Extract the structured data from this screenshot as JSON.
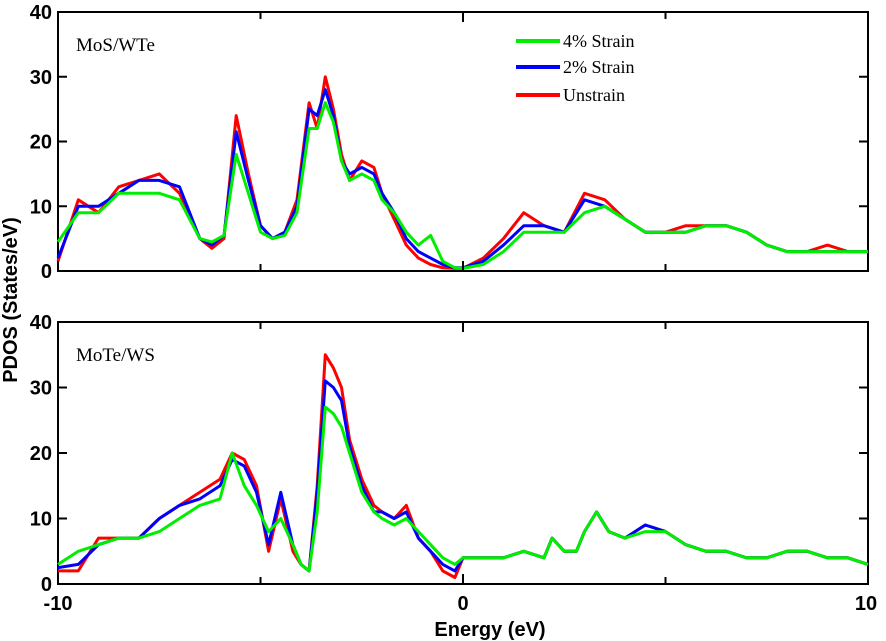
{
  "chart_data": {
    "type": "line",
    "ylabel": "PDOS (States/eV)",
    "xlabel": "Energy (eV)",
    "xlim": [
      -10,
      10
    ],
    "ylim": [
      0,
      40
    ],
    "xticks": [
      "-10",
      "0",
      "10"
    ],
    "xtick_values": [
      -10,
      0,
      10
    ],
    "yticks": [
      "0",
      "10",
      "20",
      "30",
      "40"
    ],
    "ytick_values": [
      0,
      10,
      20,
      30,
      40
    ],
    "legend": [
      {
        "name": "4% Strain",
        "color": "#00ee00"
      },
      {
        "name": "2% Strain",
        "color": "#0000ff"
      },
      {
        "name": "Unstrain",
        "color": "#ff0000"
      }
    ],
    "panels": [
      {
        "title": "MoS/WTe",
        "x": [
          -10,
          -9.5,
          -9,
          -8.5,
          -8,
          -7.5,
          -7,
          -6.5,
          -6.2,
          -5.9,
          -5.6,
          -5.3,
          -5,
          -4.7,
          -4.4,
          -4.1,
          -3.8,
          -3.6,
          -3.4,
          -3.2,
          -3,
          -2.8,
          -2.5,
          -2.2,
          -2,
          -1.7,
          -1.4,
          -1.1,
          -0.8,
          -0.5,
          -0.2,
          0,
          0.5,
          1,
          1.5,
          2,
          2.5,
          3,
          3.5,
          4,
          4.5,
          5,
          5.5,
          6,
          6.5,
          7,
          7.5,
          8,
          8.5,
          9,
          9.5,
          10
        ],
        "series": [
          {
            "name": "Unstrain",
            "color": "#ff0000",
            "values": [
              1.5,
              11,
              9,
              13,
              14,
              15,
              12,
              5,
              3.5,
              5,
              24,
              15,
              7,
              5,
              6,
              11,
              26,
              22,
              30,
              25,
              18,
              14,
              17,
              16,
              12,
              8,
              4,
              2,
              1,
              0.5,
              0.4,
              0.4,
              2,
              5,
              9,
              7,
              6,
              12,
              11,
              8,
              6,
              6,
              7,
              7,
              7,
              6,
              4,
              3,
              3,
              4,
              3,
              3
            ]
          },
          {
            "name": "2% Strain",
            "color": "#0000ff",
            "values": [
              2,
              10,
              10,
              12,
              14,
              14,
              13,
              5,
              4,
              5.5,
              21.5,
              14,
              7,
              5,
              6,
              10,
              25,
              24,
              28,
              24,
              17,
              15,
              16,
              15,
              12,
              9,
              5,
              3,
              2,
              1,
              0.5,
              0.5,
              1.5,
              4,
              7,
              7,
              6,
              11,
              10,
              8,
              6,
              6,
              6,
              7,
              7,
              6,
              4,
              3,
              3,
              3,
              3,
              3
            ]
          },
          {
            "name": "4% Strain",
            "color": "#00ee00",
            "values": [
              4.5,
              9,
              9,
              12,
              12,
              12,
              11,
              5,
              4.5,
              5.5,
              18,
              12,
              6,
              5,
              5.5,
              9,
              22,
              22,
              26,
              23,
              17,
              14,
              15,
              14,
              11,
              9,
              6,
              4,
              5.5,
              1.5,
              0.5,
              0.4,
              1,
              3,
              6,
              6,
              6,
              9,
              10,
              8,
              6,
              6,
              6,
              7,
              7,
              6,
              4,
              3,
              3,
              3,
              3,
              3
            ]
          }
        ]
      },
      {
        "title": "MoTe/WS",
        "x": [
          -10,
          -9.5,
          -9,
          -8.5,
          -8,
          -7.5,
          -7,
          -6.5,
          -6,
          -5.7,
          -5.4,
          -5.1,
          -4.8,
          -4.5,
          -4.2,
          -4,
          -3.8,
          -3.6,
          -3.4,
          -3.2,
          -3,
          -2.8,
          -2.5,
          -2.2,
          -2,
          -1.7,
          -1.4,
          -1.1,
          -0.8,
          -0.5,
          -0.2,
          0,
          0.5,
          1,
          1.5,
          2,
          2.2,
          2.5,
          2.8,
          3,
          3.3,
          3.6,
          4,
          4.5,
          5,
          5.5,
          6,
          6.5,
          7,
          7.5,
          8,
          8.5,
          9,
          9.5,
          10
        ],
        "series": [
          {
            "name": "Unstrain",
            "color": "#ff0000",
            "values": [
              2,
              2,
              7,
              7,
              7,
              10,
              12,
              14,
              16,
              20,
              19,
              15,
              5,
              13,
              5,
              3,
              2,
              15,
              35,
              33,
              30,
              22,
              16,
              12,
              11,
              10,
              12,
              7,
              5,
              2,
              1,
              4,
              4,
              4,
              5,
              4,
              7,
              5,
              5,
              8,
              11,
              8,
              7,
              9,
              8,
              6,
              5,
              5,
              4,
              4,
              5,
              5,
              4,
              4,
              3
            ]
          },
          {
            "name": "2% Strain",
            "color": "#0000ff",
            "values": [
              2.5,
              3,
              6,
              7,
              7,
              10,
              12,
              13,
              15,
              19,
              18,
              14,
              6,
              14,
              6,
              3,
              2,
              14,
              31,
              30,
              28,
              21,
              15,
              11,
              11,
              10,
              11,
              7,
              5,
              3,
              2,
              4,
              4,
              4,
              5,
              4,
              7,
              5,
              5,
              8,
              11,
              8,
              7,
              9,
              8,
              6,
              5,
              5,
              4,
              4,
              5,
              5,
              4,
              4,
              3
            ]
          },
          {
            "name": "4% Strain",
            "color": "#00ee00",
            "values": [
              3,
              5,
              6,
              7,
              7,
              8,
              10,
              12,
              13,
              20,
              15,
              12,
              8,
              10,
              6,
              3,
              2,
              11,
              27,
              26,
              24,
              20,
              14,
              11,
              10,
              9,
              10,
              8,
              6,
              4,
              3,
              4,
              4,
              4,
              5,
              4,
              7,
              5,
              5,
              8,
              11,
              8,
              7,
              8,
              8,
              6,
              5,
              5,
              4,
              4,
              5,
              5,
              4,
              4,
              3
            ]
          }
        ]
      }
    ]
  }
}
